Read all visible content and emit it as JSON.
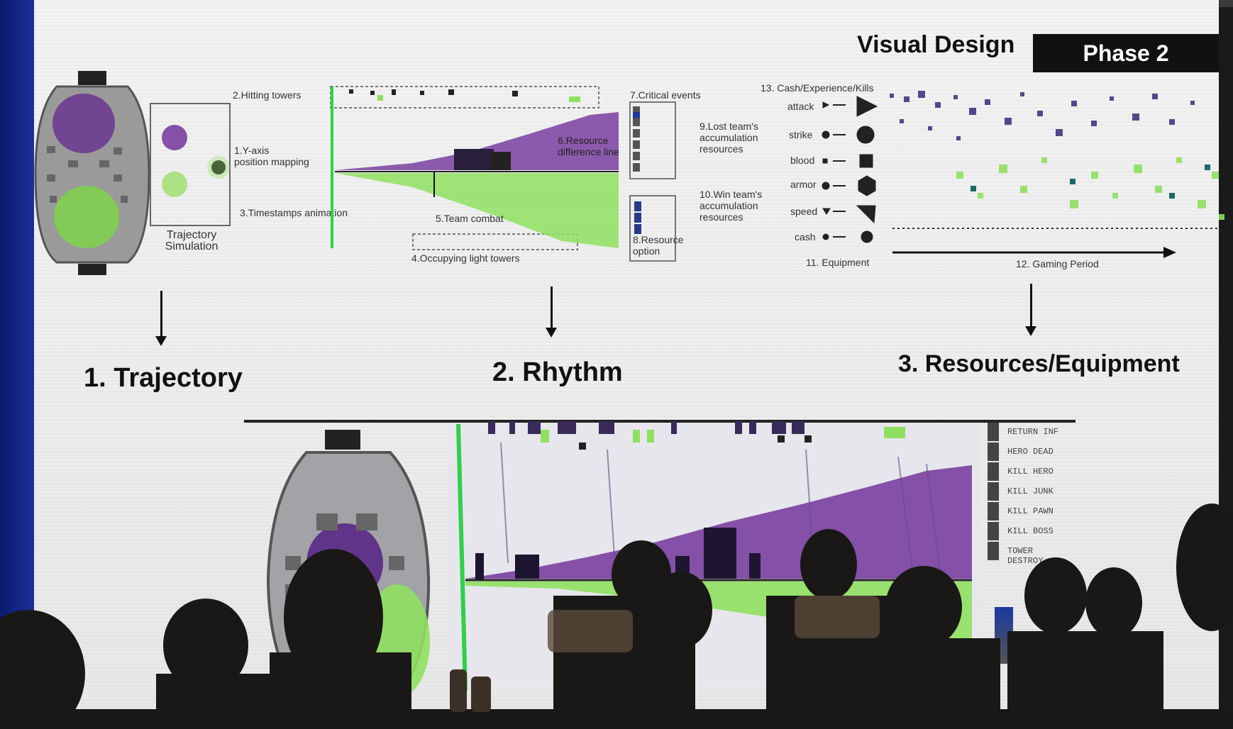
{
  "header": {
    "title": "Visual Design",
    "phase": "Phase 2"
  },
  "top_panel": {
    "trajectory": {
      "label_line1": "Trajectory",
      "label_line2": "Simulation"
    },
    "rhythm_annotations": {
      "hitting_towers": "2.Hitting towers",
      "y_axis_mapping_1": "1.Y-axis",
      "y_axis_mapping_2": "position mapping",
      "timestamps": "3.Timestamps animation",
      "team_combat": "5.Team combat",
      "occupying": "4.Occupying light towers",
      "resource_diff_1": "6.Resource",
      "resource_diff_2": "difference line",
      "critical_events": "7.Critical events",
      "resource_option_1": "8.Resource",
      "resource_option_2": "option",
      "lost_team_1": "9.Lost team's",
      "lost_team_2": "accumulation",
      "lost_team_3": "resources",
      "win_team_1": "10.Win team's",
      "win_team_2": "accumulation",
      "win_team_3": "resources"
    },
    "equipment": {
      "cash_exp_kills": "13. Cash/Experience/Kills",
      "items": [
        "attack",
        "strike",
        "blood",
        "armor",
        "speed",
        "cash"
      ],
      "equipment_label": "11. Equipment",
      "gaming_period": "12. Gaming Period"
    }
  },
  "sections": {
    "s1": "1. Trajectory",
    "s2": "2. Rhythm",
    "s3": "3. Resources/Equipment"
  },
  "bottom_legend": [
    "RETURN INF",
    "HERO DEAD",
    "KILL HERO",
    "KILL JUNK",
    "KILL PAWN",
    "KILL BOSS",
    "TOWER DESTROY"
  ],
  "colors": {
    "purple": "#7a3fa0",
    "green": "#8fe060",
    "dark": "#222222",
    "navy": "#2a2a7a"
  }
}
